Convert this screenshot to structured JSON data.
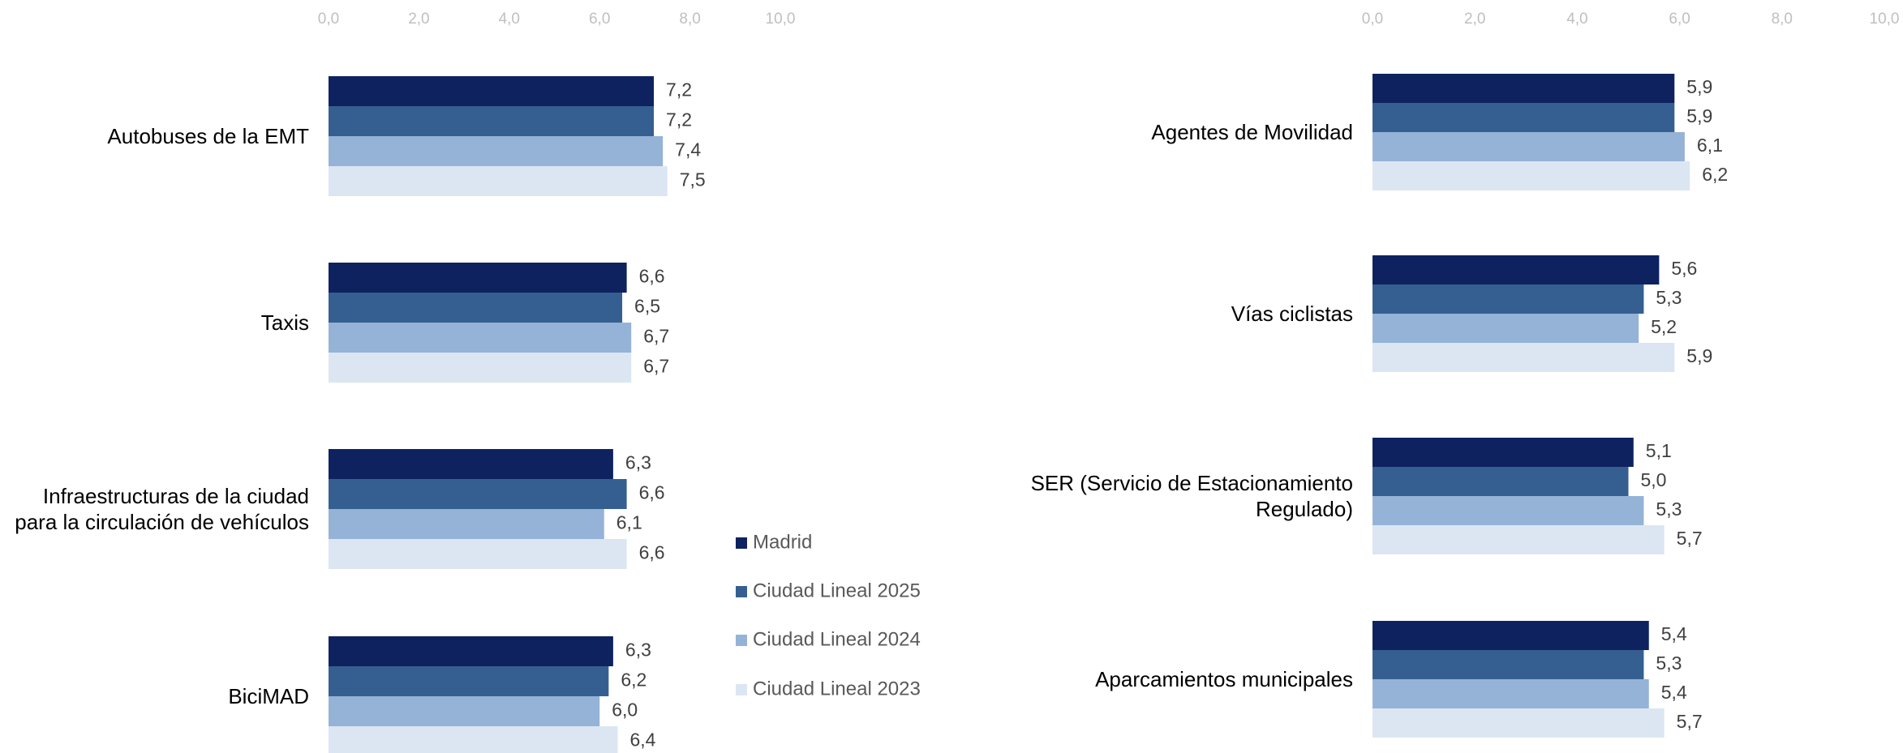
{
  "chart_data": [
    {
      "type": "bar",
      "orientation": "horizontal",
      "categories": [
        "Autobuses de la EMT",
        "Taxis",
        "Infraestructuras de la ciudad\npara la  circulación de vehículos",
        "BiciMAD"
      ],
      "series": [
        {
          "name": "Madrid",
          "color": "#0e2260",
          "values": [
            7.2,
            6.6,
            6.3,
            6.3
          ],
          "value_labels": [
            "7,2",
            "6,6",
            "6,3",
            "6,3"
          ]
        },
        {
          "name": "Ciudad Lineal 2025",
          "color": "#365f91",
          "values": [
            7.2,
            6.5,
            6.6,
            6.2
          ],
          "value_labels": [
            "7,2",
            "6,5",
            "6,6",
            "6,2"
          ]
        },
        {
          "name": "Ciudad Lineal 2024",
          "color": "#95b3d7",
          "values": [
            7.4,
            6.7,
            6.1,
            6.0
          ],
          "value_labels": [
            "7,4",
            "6,7",
            "6,1",
            "6,0"
          ]
        },
        {
          "name": "Ciudad Lineal 2023",
          "color": "#dce6f2",
          "values": [
            7.5,
            6.7,
            6.6,
            6.4
          ],
          "value_labels": [
            "7,5",
            "6,7",
            "6,6",
            "6,4"
          ]
        }
      ],
      "xlim": [
        0,
        10
      ],
      "xticks": [
        {
          "value": 0,
          "label": "0,0"
        },
        {
          "value": 2,
          "label": "2,0"
        },
        {
          "value": 4,
          "label": "4,0"
        },
        {
          "value": 6,
          "label": "6,0"
        },
        {
          "value": 8,
          "label": "8,0"
        },
        {
          "value": 10,
          "label": "10,0"
        }
      ]
    },
    {
      "type": "bar",
      "orientation": "horizontal",
      "categories": [
        "Agentes de Movilidad",
        "Vías ciclistas",
        "SER (Servicio de Estacionamiento\nRegulado)",
        "Aparcamientos municipales"
      ],
      "series": [
        {
          "values": [
            5.9,
            5.6,
            5.1,
            5.4
          ],
          "value_labels": [
            "5,9",
            "5,6",
            "5,1",
            "5,4"
          ]
        },
        {
          "values": [
            5.9,
            5.3,
            5.0,
            5.3
          ],
          "value_labels": [
            "5,9",
            "5,3",
            "5,0",
            "5,3"
          ]
        },
        {
          "values": [
            6.1,
            5.2,
            5.3,
            5.4
          ],
          "value_labels": [
            "6,1",
            "5,2",
            "5,3",
            "5,4"
          ]
        },
        {
          "values": [
            6.2,
            5.9,
            5.7,
            5.7
          ],
          "value_labels": [
            "6,2",
            "5,9",
            "5,7",
            "5,7"
          ]
        }
      ],
      "xlim": [
        0,
        10
      ],
      "xticks": [
        {
          "value": 0,
          "label": "0,0"
        },
        {
          "value": 2,
          "label": "2,0"
        },
        {
          "value": 4,
          "label": "4,0"
        },
        {
          "value": 6,
          "label": "6,0"
        },
        {
          "value": 8,
          "label": "8,0"
        },
        {
          "value": 10,
          "label": "10,0"
        }
      ]
    }
  ]
}
